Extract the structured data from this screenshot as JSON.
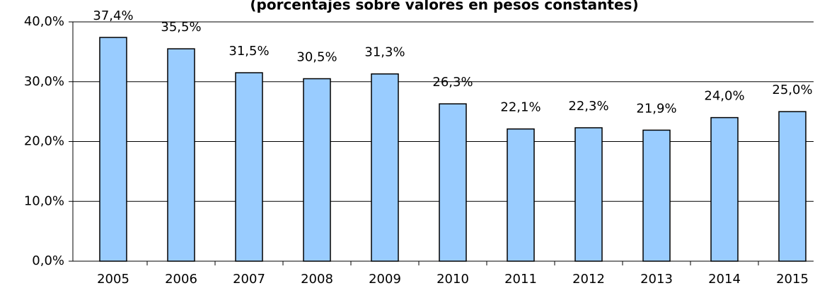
{
  "chart_data": {
    "type": "bar",
    "title": "(porcentajes sobre valores en pesos constantes)",
    "categories": [
      "2005",
      "2006",
      "2007",
      "2008",
      "2009",
      "2010",
      "2011",
      "2012",
      "2013",
      "2014",
      "2015"
    ],
    "values": [
      37.4,
      35.5,
      31.5,
      30.5,
      31.3,
      26.3,
      22.1,
      22.3,
      21.9,
      24.0,
      25.0
    ],
    "value_labels": [
      "37,4%",
      "35,5%",
      "31,5%",
      "30,5%",
      "31,3%",
      "26,3%",
      "22,1%",
      "22,3%",
      "21,9%",
      "24,0%",
      "25,0%"
    ],
    "color": "#99ccff",
    "ylim": [
      0,
      40
    ],
    "yticks": [
      {
        "value": 0,
        "label": "0,0%"
      },
      {
        "value": 10,
        "label": "10,0%"
      },
      {
        "value": 20,
        "label": "20,0%"
      },
      {
        "value": 30,
        "label": "30,0%"
      },
      {
        "value": 40,
        "label": "40,0%"
      }
    ],
    "grid": true
  }
}
